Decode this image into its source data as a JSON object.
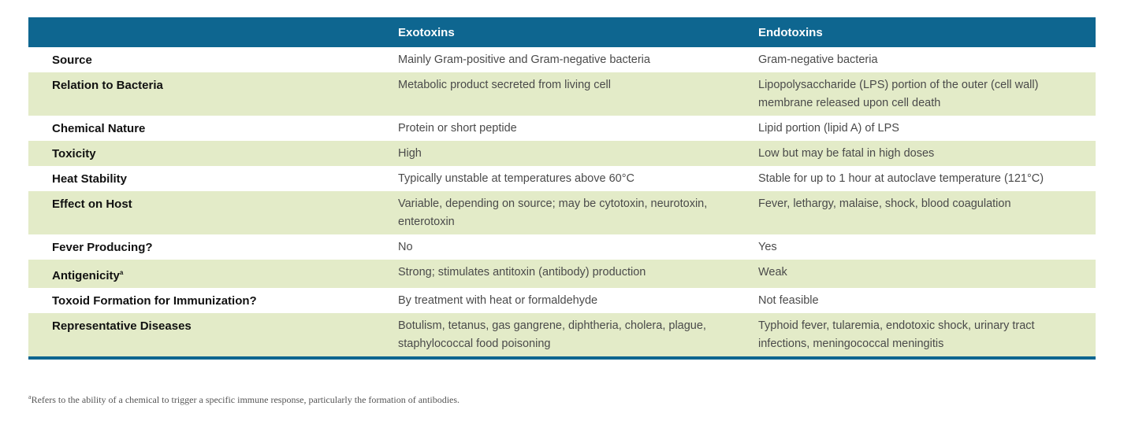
{
  "table": {
    "headers": [
      "",
      "Exotoxins",
      "Endotoxins"
    ],
    "rows": [
      {
        "label": "Source",
        "exotoxins": "Mainly Gram-positive and Gram-negative bacteria",
        "endotoxins": "Gram-negative bacteria"
      },
      {
        "label": "Relation to Bacteria",
        "exotoxins": "Metabolic product secreted from living cell",
        "endotoxins": "Lipopolysaccharide (LPS) portion of the outer (cell wall) membrane released upon cell death"
      },
      {
        "label": "Chemical Nature",
        "exotoxins": "Protein or short peptide",
        "endotoxins": "Lipid portion (lipid A) of LPS"
      },
      {
        "label": "Toxicity",
        "exotoxins": "High",
        "endotoxins": "Low but may be fatal in high doses"
      },
      {
        "label": "Heat Stability",
        "exotoxins": "Typically unstable at temperatures above 60°C",
        "endotoxins": "Stable for up to 1 hour at autoclave temperature (121°C)"
      },
      {
        "label": "Effect on Host",
        "exotoxins": "Variable, depending on source; may be cytotoxin, neurotoxin, enterotoxin",
        "endotoxins": "Fever, lethargy, malaise, shock, blood coagulation"
      },
      {
        "label": "Fever Producing?",
        "exotoxins": "No",
        "endotoxins": "Yes"
      },
      {
        "label": "Antigenicity",
        "label_mark": "a",
        "exotoxins": "Strong; stimulates antitoxin (antibody) production",
        "endotoxins": "Weak"
      },
      {
        "label": "Toxoid Formation for Immunization?",
        "exotoxins": "By treatment with heat or formaldehyde",
        "endotoxins": "Not feasible"
      },
      {
        "label": "Representative Diseases",
        "exotoxins": "Botulism, tetanus, gas gangrene, diphtheria, cholera, plague, staphylococcal food poisoning",
        "endotoxins": "Typhoid fever, tularemia, endotoxic shock, urinary tract infections, meningococcal meningitis"
      }
    ]
  },
  "footnote": "Refers to the ability of a chemical to trigger a specific immune response, particularly the formation of antibodies.",
  "footnote_mark": "a",
  "colors": {
    "header_bg": "#0e6690",
    "row_shade": "#e3ebc8",
    "header_text": "#ffffff"
  }
}
